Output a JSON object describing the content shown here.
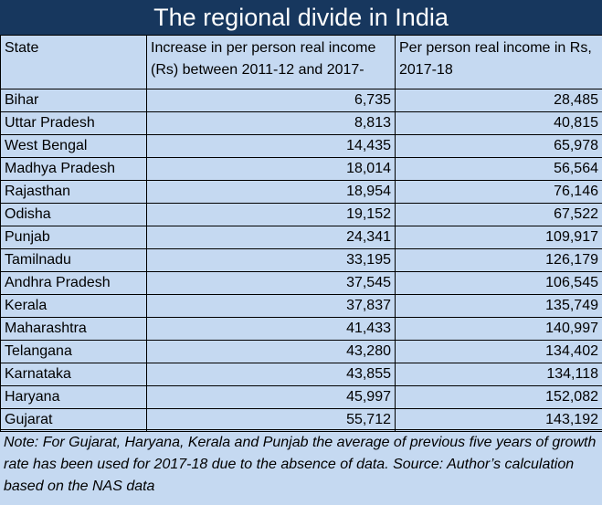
{
  "title": "The regional divide in India",
  "chart_data": {
    "type": "table",
    "title": "The regional divide in India",
    "columns": [
      "State",
      "Increase in per person real income (Rs) between 2011-12 and 2017-",
      "Per person real income in Rs, 2017-18"
    ],
    "rows": [
      {
        "state": "Bihar",
        "increase": "6,735",
        "income": "28,485"
      },
      {
        "state": "Uttar Pradesh",
        "increase": "8,813",
        "income": "40,815"
      },
      {
        "state": "West Bengal",
        "increase": "14,435",
        "income": "65,978"
      },
      {
        "state": "Madhya Pradesh",
        "increase": "18,014",
        "income": "56,564"
      },
      {
        "state": "Rajasthan",
        "increase": "18,954",
        "income": "76,146"
      },
      {
        "state": "Odisha",
        "increase": "19,152",
        "income": "67,522"
      },
      {
        "state": "Punjab",
        "increase": "24,341",
        "income": "109,917"
      },
      {
        "state": "Tamilnadu",
        "increase": "33,195",
        "income": "126,179"
      },
      {
        "state": "Andhra Pradesh",
        "increase": "37,545",
        "income": "106,545"
      },
      {
        "state": "Kerala",
        "increase": "37,837",
        "income": "135,749"
      },
      {
        "state": "Maharashtra",
        "increase": "41,433",
        "income": "140,997"
      },
      {
        "state": "Telangana",
        "increase": "43,280",
        "income": "134,402"
      },
      {
        "state": "Karnataka",
        "increase": "43,855",
        "income": "134,118"
      },
      {
        "state": "Haryana",
        "increase": "45,997",
        "income": "152,082"
      },
      {
        "state": "Gujarat",
        "increase": "55,712",
        "income": "143,192"
      }
    ],
    "note": "Note: For Gujarat, Haryana, Kerala and Punjab the average of previous five years of growth rate has been used for 2017-18 due to the absence of data. Source: Author’s calculation based on the NAS data"
  },
  "colors": {
    "title_background": "#17375e",
    "title_text": "#ffffff",
    "table_background": "#c5d9f1",
    "border": "#000000"
  }
}
